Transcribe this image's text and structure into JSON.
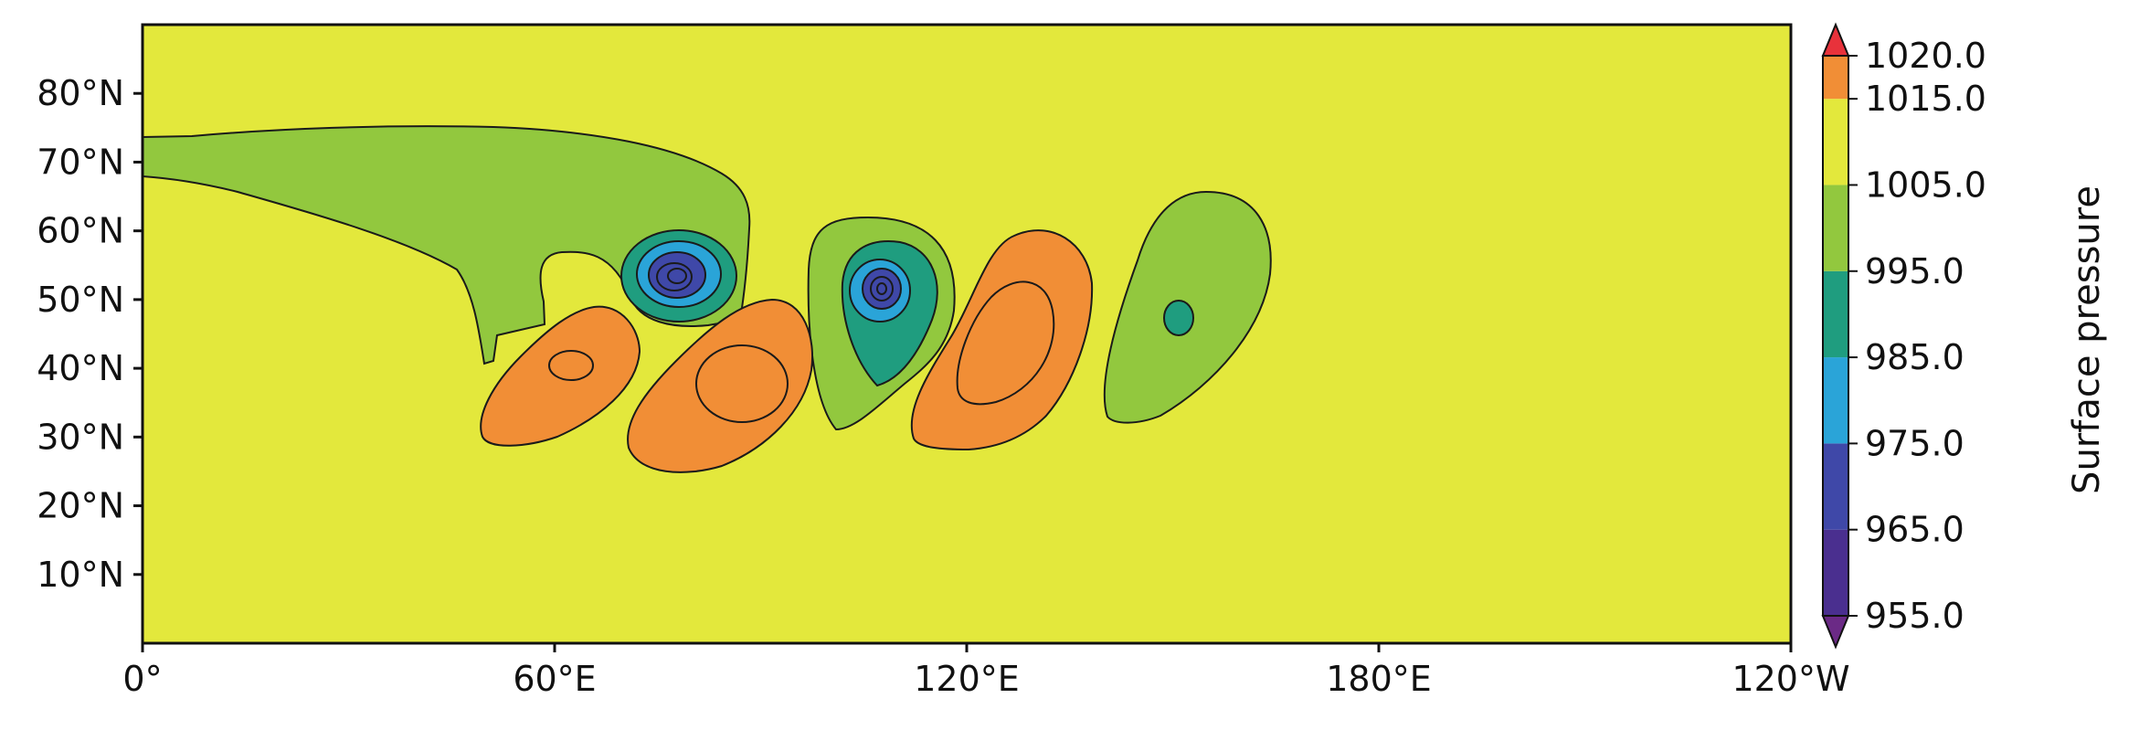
{
  "chart_data": {
    "type": "heatmap",
    "title": "",
    "x_tick_labels": [
      "0°",
      "60°E",
      "120°E",
      "180°E",
      "120°W"
    ],
    "y_tick_labels": [
      "10°N",
      "20°N",
      "30°N",
      "40°N",
      "50°N",
      "60°N",
      "70°N",
      "80°N"
    ],
    "x_ticks_deg_east": [
      0,
      60,
      120,
      180,
      240
    ],
    "y_ticks_deg_north": [
      10,
      20,
      30,
      40,
      50,
      60,
      70,
      80
    ],
    "xlim_deg_east": [
      0,
      240
    ],
    "ylim_deg_north": [
      0,
      90
    ],
    "colorbar": {
      "label": "Surface pressure",
      "tick_labels": [
        "955.0",
        "965.0",
        "975.0",
        "985.0",
        "995.0",
        "1005.0",
        "1015.0",
        "1020.0"
      ],
      "extend": "both",
      "bins": [
        {
          "lo": 955,
          "hi": 965,
          "color": "#4a2f8f"
        },
        {
          "lo": 965,
          "hi": 975,
          "color": "#3f48a8"
        },
        {
          "lo": 975,
          "hi": 985,
          "color": "#2aa4d8"
        },
        {
          "lo": 985,
          "hi": 995,
          "color": "#1f9d7f"
        },
        {
          "lo": 995,
          "hi": 1005,
          "color": "#92c83e"
        },
        {
          "lo": 1005,
          "hi": 1015,
          "color": "#e3e83c"
        },
        {
          "lo": 1015,
          "hi": 1020,
          "color": "#f18e36"
        }
      ],
      "under_color": "#6b2a86",
      "over_color": "#e8323b"
    },
    "background_level": 1007,
    "features": [
      {
        "kind": "low",
        "center": [
          77,
          54
        ],
        "min_level": 965
      },
      {
        "kind": "low",
        "center": [
          108,
          52
        ],
        "min_level": 965
      },
      {
        "kind": "low",
        "center": [
          151,
          48
        ],
        "min_level": 990
      },
      {
        "kind": "high",
        "center": [
          62,
          41
        ],
        "max_level": 1015
      },
      {
        "kind": "high",
        "center": [
          88,
          37
        ],
        "max_level": 1015
      },
      {
        "kind": "high",
        "center": [
          124,
          42
        ],
        "max_level": 1015
      }
    ],
    "grid": false,
    "legend": "colorbar-right"
  }
}
